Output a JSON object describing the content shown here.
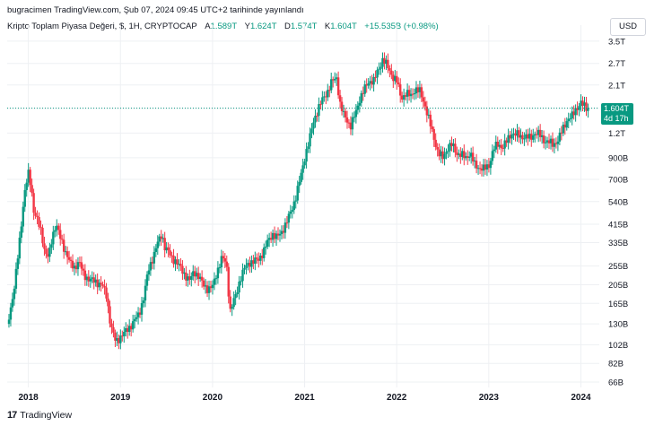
{
  "header": {
    "published_line": "bugracimen TradingView.com, Şub 07, 2024 09:45 UTC+2 tarihinde yayınlandı"
  },
  "legend": {
    "symbol": "Kripto Toplam Piyasa Değeri, $, 1H, CRYPTOCAP",
    "open_label": "A",
    "open_value": "1.589T",
    "high_label": "Y",
    "high_value": "1.624T",
    "low_label": "D",
    "low_value": "1.574T",
    "close_label": "K",
    "close_value": "1.604T",
    "change": "+15.535B (+0.98%)"
  },
  "currency_button": "USD",
  "price_tag": {
    "price": "1.604T",
    "countdown": "4d 17h"
  },
  "brand": {
    "logo": "17",
    "name": "TradingView"
  },
  "colors": {
    "up": "#089981",
    "down": "#f23645",
    "grid": "#eef0f3",
    "last_line": "#089981"
  },
  "chart_data": {
    "type": "candlestick",
    "scale": "log",
    "y_ticks": [
      "3.5T",
      "2.7T",
      "2.1T",
      "1.6T",
      "1.2T",
      "900B",
      "700B",
      "540B",
      "415B",
      "335B",
      "255B",
      "205B",
      "165B",
      "130B",
      "102B",
      "82B",
      "66B"
    ],
    "y_tick_values": [
      3500,
      2700,
      2100,
      1600,
      1200,
      900,
      700,
      540,
      415,
      335,
      255,
      205,
      165,
      130,
      102,
      82,
      66
    ],
    "x_ticks": [
      "2018",
      "2019",
      "2020",
      "2021",
      "2022",
      "2023",
      "2024"
    ],
    "x_tick_values": [
      2018.0,
      2019.0,
      2020.0,
      2021.0,
      2022.0,
      2023.0,
      2024.0
    ],
    "ylim": [
      62,
      3800
    ],
    "xlim": [
      2017.77,
      2024.2
    ],
    "last_price": 1604,
    "unit": "B USD",
    "path": [
      [
        2017.77,
        130
      ],
      [
        2017.8,
        150
      ],
      [
        2017.85,
        200
      ],
      [
        2017.9,
        330
      ],
      [
        2017.93,
        450
      ],
      [
        2017.96,
        600
      ],
      [
        2018.0,
        750
      ],
      [
        2018.03,
        650
      ],
      [
        2018.06,
        480
      ],
      [
        2018.1,
        430
      ],
      [
        2018.14,
        380
      ],
      [
        2018.18,
        300
      ],
      [
        2018.22,
        280
      ],
      [
        2018.26,
        360
      ],
      [
        2018.3,
        420
      ],
      [
        2018.34,
        360
      ],
      [
        2018.38,
        320
      ],
      [
        2018.42,
        290
      ],
      [
        2018.46,
        260
      ],
      [
        2018.5,
        250
      ],
      [
        2018.55,
        270
      ],
      [
        2018.6,
        230
      ],
      [
        2018.65,
        220
      ],
      [
        2018.7,
        215
      ],
      [
        2018.75,
        210
      ],
      [
        2018.8,
        205
      ],
      [
        2018.85,
        180
      ],
      [
        2018.88,
        140
      ],
      [
        2018.91,
        120
      ],
      [
        2018.95,
        105
      ],
      [
        2019.0,
        112
      ],
      [
        2019.05,
        118
      ],
      [
        2019.1,
        125
      ],
      [
        2019.15,
        135
      ],
      [
        2019.2,
        145
      ],
      [
        2019.25,
        175
      ],
      [
        2019.3,
        240
      ],
      [
        2019.35,
        280
      ],
      [
        2019.4,
        330
      ],
      [
        2019.45,
        370
      ],
      [
        2019.48,
        320
      ],
      [
        2019.52,
        300
      ],
      [
        2019.56,
        280
      ],
      [
        2019.6,
        270
      ],
      [
        2019.65,
        250
      ],
      [
        2019.7,
        230
      ],
      [
        2019.75,
        215
      ],
      [
        2019.8,
        240
      ],
      [
        2019.85,
        225
      ],
      [
        2019.9,
        205
      ],
      [
        2019.95,
        195
      ],
      [
        2020.0,
        200
      ],
      [
        2020.05,
        240
      ],
      [
        2020.1,
        280
      ],
      [
        2020.15,
        265
      ],
      [
        2020.19,
        150
      ],
      [
        2020.22,
        165
      ],
      [
        2020.26,
        185
      ],
      [
        2020.3,
        220
      ],
      [
        2020.35,
        250
      ],
      [
        2020.4,
        265
      ],
      [
        2020.45,
        270
      ],
      [
        2020.5,
        275
      ],
      [
        2020.55,
        300
      ],
      [
        2020.6,
        340
      ],
      [
        2020.65,
        370
      ],
      [
        2020.7,
        355
      ],
      [
        2020.75,
        380
      ],
      [
        2020.8,
        420
      ],
      [
        2020.85,
        480
      ],
      [
        2020.9,
        560
      ],
      [
        2020.95,
        700
      ],
      [
        2021.0,
        900
      ],
      [
        2021.05,
        1100
      ],
      [
        2021.1,
        1400
      ],
      [
        2021.15,
        1600
      ],
      [
        2021.2,
        1800
      ],
      [
        2021.25,
        1950
      ],
      [
        2021.3,
        2200
      ],
      [
        2021.35,
        2300
      ],
      [
        2021.38,
        1700
      ],
      [
        2021.42,
        1500
      ],
      [
        2021.46,
        1400
      ],
      [
        2021.5,
        1300
      ],
      [
        2021.55,
        1500
      ],
      [
        2021.6,
        1800
      ],
      [
        2021.65,
        2000
      ],
      [
        2021.7,
        2200
      ],
      [
        2021.75,
        2200
      ],
      [
        2021.8,
        2500
      ],
      [
        2021.85,
        2850
      ],
      [
        2021.88,
        2700
      ],
      [
        2021.92,
        2500
      ],
      [
        2021.96,
        2300
      ],
      [
        2022.0,
        2200
      ],
      [
        2022.05,
        1800
      ],
      [
        2022.1,
        1900
      ],
      [
        2022.15,
        1850
      ],
      [
        2022.2,
        2000
      ],
      [
        2022.25,
        1950
      ],
      [
        2022.3,
        1700
      ],
      [
        2022.35,
        1400
      ],
      [
        2022.4,
        1150
      ],
      [
        2022.45,
        950
      ],
      [
        2022.5,
        900
      ],
      [
        2022.55,
        1000
      ],
      [
        2022.6,
        1050
      ],
      [
        2022.65,
        950
      ],
      [
        2022.7,
        930
      ],
      [
        2022.75,
        900
      ],
      [
        2022.8,
        950
      ],
      [
        2022.85,
        820
      ],
      [
        2022.9,
        800
      ],
      [
        2022.95,
        790
      ],
      [
        2023.0,
        820
      ],
      [
        2023.05,
        1000
      ],
      [
        2023.1,
        1050
      ],
      [
        2023.15,
        1020
      ],
      [
        2023.2,
        1100
      ],
      [
        2023.25,
        1200
      ],
      [
        2023.3,
        1180
      ],
      [
        2023.35,
        1150
      ],
      [
        2023.4,
        1150
      ],
      [
        2023.45,
        1130
      ],
      [
        2023.5,
        1200
      ],
      [
        2023.55,
        1180
      ],
      [
        2023.6,
        1100
      ],
      [
        2023.65,
        1080
      ],
      [
        2023.7,
        1050
      ],
      [
        2023.75,
        1100
      ],
      [
        2023.8,
        1250
      ],
      [
        2023.85,
        1400
      ],
      [
        2023.9,
        1450
      ],
      [
        2023.95,
        1600
      ],
      [
        2024.0,
        1700
      ],
      [
        2024.05,
        1620
      ],
      [
        2024.08,
        1604
      ]
    ]
  }
}
